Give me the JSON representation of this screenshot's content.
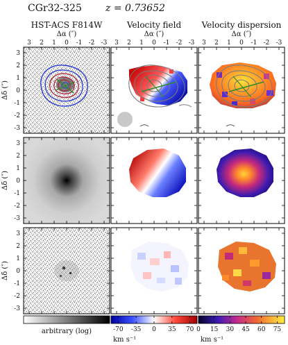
{
  "header": {
    "object_name": "CGr32-325",
    "redshift": "z = 0.73652"
  },
  "columns": [
    {
      "title": "HST-ACS F814W",
      "axis_label": "Δα (″)"
    },
    {
      "title": "Velocity field",
      "axis_label": "Δα (″)"
    },
    {
      "title": "Velocity dispersion",
      "axis_label": "Δα (″)"
    }
  ],
  "x_ticks": [
    "3",
    "2",
    "1",
    "0",
    "-1",
    "-2",
    "-3"
  ],
  "y_ticks": [
    "3",
    "2",
    "1",
    "0",
    "-1",
    "-2",
    "-3"
  ],
  "y_axis_label": "Δδ (″)",
  "colorbars": [
    {
      "label": "arbitrary (log)",
      "ticks": [],
      "unit": ""
    },
    {
      "label": "",
      "ticks": [
        "-70",
        "-35",
        "0",
        "35",
        "70"
      ],
      "unit": "km s⁻¹"
    },
    {
      "label": "",
      "ticks": [
        "0",
        "15",
        "30",
        "45",
        "60",
        "75"
      ],
      "unit": "km s⁻¹"
    }
  ],
  "colors": {
    "contour_blue": "#2b3bd6",
    "contour_red": "#b2253a",
    "kinematic_axis": "#2e8b2e",
    "isophote_gray": "#7a7a7a"
  }
}
